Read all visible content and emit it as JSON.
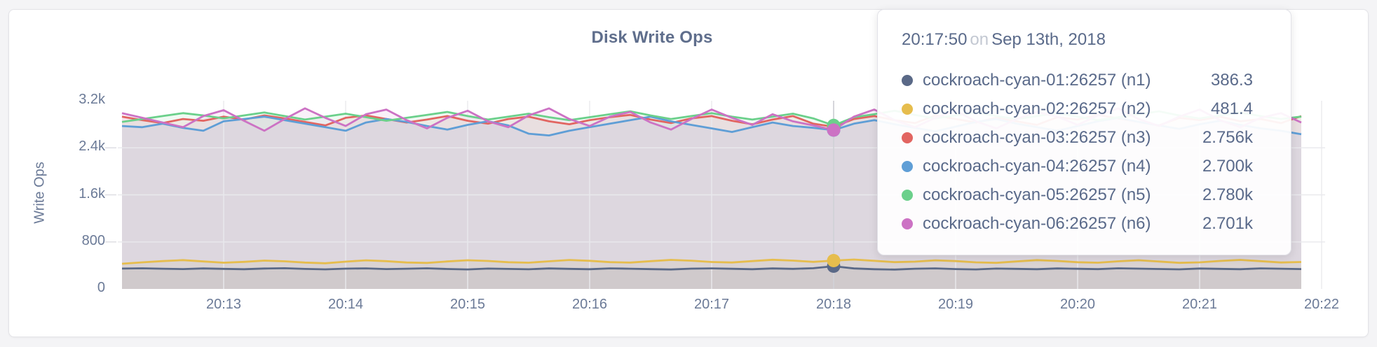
{
  "page": {
    "background": "#f4f4f6"
  },
  "chart_data": {
    "type": "area",
    "title": "Disk Write Ops",
    "ylabel": "Write Ops",
    "xlabel": "",
    "legend_position": "none",
    "grid": true,
    "ylim": [
      0,
      3200
    ],
    "y_ticks": [
      {
        "label": "3.2k",
        "value": 3200
      },
      {
        "label": "2.4k",
        "value": 2400
      },
      {
        "label": "1.6k",
        "value": 1600
      },
      {
        "label": "800",
        "value": 800
      },
      {
        "label": "0",
        "value": 0
      }
    ],
    "x_ticks": [
      "20:13",
      "20:14",
      "20:15",
      "20:16",
      "20:17",
      "20:18",
      "20:19",
      "20:20",
      "20:21",
      "20:22"
    ],
    "x_start_time": "20:12:10",
    "x_step_seconds": 10,
    "hover_index": 35,
    "series": [
      {
        "name": "cockroach-cyan-01:26257 (n1)",
        "color": "#5a6987",
        "values": [
          346,
          351,
          344,
          338,
          349,
          342,
          335,
          347,
          352,
          340,
          333,
          345,
          350,
          338,
          344,
          351,
          339,
          332,
          346,
          340,
          334,
          348,
          342,
          336,
          350,
          344,
          337,
          331,
          345,
          350,
          343,
          336,
          348,
          341,
          352,
          386.3,
          349,
          336,
          330,
          344,
          350,
          338,
          332,
          346,
          341,
          335,
          349,
          343,
          337,
          351,
          345,
          339,
          333,
          347,
          342,
          336,
          350,
          344,
          338
        ]
      },
      {
        "name": "cockroach-cyan-02:26257 (n2)",
        "color": "#e6bd4d",
        "values": [
          428,
          452,
          474,
          490,
          468,
          446,
          460,
          482,
          470,
          448,
          436,
          464,
          486,
          472,
          450,
          442,
          468,
          488,
          476,
          454,
          446,
          470,
          492,
          478,
          456,
          448,
          472,
          494,
          480,
          458,
          450,
          474,
          496,
          482,
          460,
          481.4,
          500,
          478,
          456,
          464,
          486,
          474,
          452,
          444,
          468,
          490,
          476,
          454,
          446,
          470,
          488,
          466,
          444,
          452,
          476,
          494,
          472,
          450,
          458
        ]
      },
      {
        "name": "cockroach-cyan-03:26257 (n3)",
        "color": "#e26561",
        "values": [
          2930,
          2870,
          2820,
          2890,
          2860,
          2930,
          2880,
          2950,
          2900,
          2840,
          2780,
          2910,
          2950,
          2890,
          2830,
          2880,
          2940,
          2860,
          2810,
          2890,
          2930,
          2850,
          2800,
          2870,
          2920,
          2960,
          2880,
          2820,
          2900,
          2940,
          2860,
          2800,
          2880,
          2940,
          2810,
          2756,
          2890,
          2940,
          2870,
          2820,
          2950,
          2890,
          2830,
          2910,
          2850,
          2790,
          2920,
          2880,
          2960,
          2900,
          2840,
          2780,
          2910,
          2870,
          2930,
          2850,
          2890,
          2820,
          2940
        ]
      },
      {
        "name": "cockroach-cyan-04:26257 (n4)",
        "color": "#5f9ed6",
        "values": [
          2770,
          2750,
          2810,
          2740,
          2690,
          2850,
          2890,
          2930,
          2870,
          2810,
          2750,
          2690,
          2830,
          2890,
          2840,
          2770,
          2710,
          2790,
          2850,
          2780,
          2640,
          2610,
          2690,
          2750,
          2810,
          2870,
          2930,
          2850,
          2790,
          2730,
          2670,
          2750,
          2830,
          2770,
          2740,
          2700,
          2810,
          2870,
          2800,
          2740,
          2680,
          2760,
          2840,
          2890,
          2810,
          2750,
          2690,
          2770,
          2850,
          2910,
          2840,
          2780,
          2720,
          2800,
          2860,
          2790,
          2730,
          2690,
          2630
        ]
      },
      {
        "name": "cockroach-cyan-05:26257 (n5)",
        "color": "#6bd08b",
        "values": [
          2840,
          2890,
          2940,
          2990,
          2950,
          2900,
          2950,
          3000,
          2940,
          2880,
          2930,
          2980,
          2920,
          2860,
          2910,
          2960,
          3010,
          2940,
          2880,
          2930,
          2980,
          2920,
          2870,
          2920,
          2970,
          3020,
          2950,
          2890,
          2940,
          2990,
          2930,
          2880,
          2930,
          2980,
          2900,
          2780,
          2920,
          2970,
          3030,
          2960,
          2900,
          2950,
          3000,
          2940,
          2890,
          2940,
          2990,
          2930,
          2870,
          2920,
          2970,
          3020,
          2950,
          2900,
          2950,
          3000,
          2940,
          2890,
          2930
        ]
      },
      {
        "name": "cockroach-cyan-06:26257 (n6)",
        "color": "#cc72c4",
        "values": [
          2990,
          2910,
          2830,
          2750,
          2940,
          3040,
          2860,
          2690,
          2890,
          3070,
          2910,
          2770,
          2970,
          3050,
          2870,
          2730,
          2910,
          3030,
          2850,
          2750,
          2950,
          3070,
          2890,
          2770,
          2930,
          3010,
          2830,
          2710,
          2890,
          3050,
          2910,
          2790,
          2970,
          2850,
          2780,
          2701,
          2930,
          3050,
          2870,
          2750,
          2910,
          3030,
          2850,
          2730,
          2890,
          3010,
          2930,
          2790,
          2950,
          3070,
          2890,
          2770,
          2930,
          3050,
          2870,
          2750,
          2910,
          2990,
          2830
        ]
      }
    ]
  },
  "tooltip": {
    "time": "20:17:50",
    "conjunction": "on",
    "date": "Sep 13th, 2018",
    "rows": [
      {
        "label": "cockroach-cyan-01:26257 (n1)",
        "value": "386.3",
        "color": "#5a6987"
      },
      {
        "label": "cockroach-cyan-02:26257 (n2)",
        "value": "481.4",
        "color": "#e6bd4d"
      },
      {
        "label": "cockroach-cyan-03:26257 (n3)",
        "value": "2.756k",
        "color": "#e26561"
      },
      {
        "label": "cockroach-cyan-04:26257 (n4)",
        "value": "2.700k",
        "color": "#5f9ed6"
      },
      {
        "label": "cockroach-cyan-05:26257 (n5)",
        "value": "2.780k",
        "color": "#6bd08b"
      },
      {
        "label": "cockroach-cyan-06:26257 (n6)",
        "value": "2.701k",
        "color": "#cc72c4"
      }
    ]
  },
  "colors": {
    "grid": "#e9e9ed",
    "crosshair": "#cfcfd4",
    "axis_text": "#6b7a97",
    "title_text": "#5f6e8c"
  }
}
